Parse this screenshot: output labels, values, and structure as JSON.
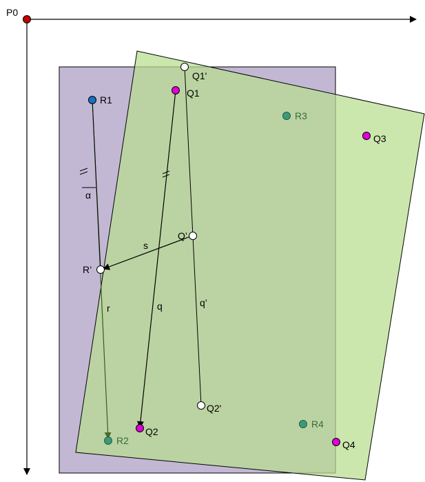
{
  "colors": {
    "purple_fill": "#c2b8d4",
    "green_fill": "#b9de8f",
    "green_fill_opacity": 0.72,
    "point_magenta": "#e000d6",
    "point_blue": "#1a6fc0",
    "point_teal": "#3a9a7a",
    "point_red": "#c00000",
    "label_green": "#3a6a3a"
  },
  "labels": {
    "P0": "P0",
    "R1": "R1",
    "R2": "R2",
    "R3": "R3",
    "R4": "R4",
    "Q1": "Q1",
    "Q2": "Q2",
    "Q3": "Q3",
    "Q4": "Q4",
    "Q1p": "Q1'",
    "Q2p": "Q2'",
    "Qp": "Q’",
    "Rp": "R’",
    "alpha": "α",
    "s": "s",
    "r": "r",
    "q": "q",
    "qp": "q’"
  }
}
